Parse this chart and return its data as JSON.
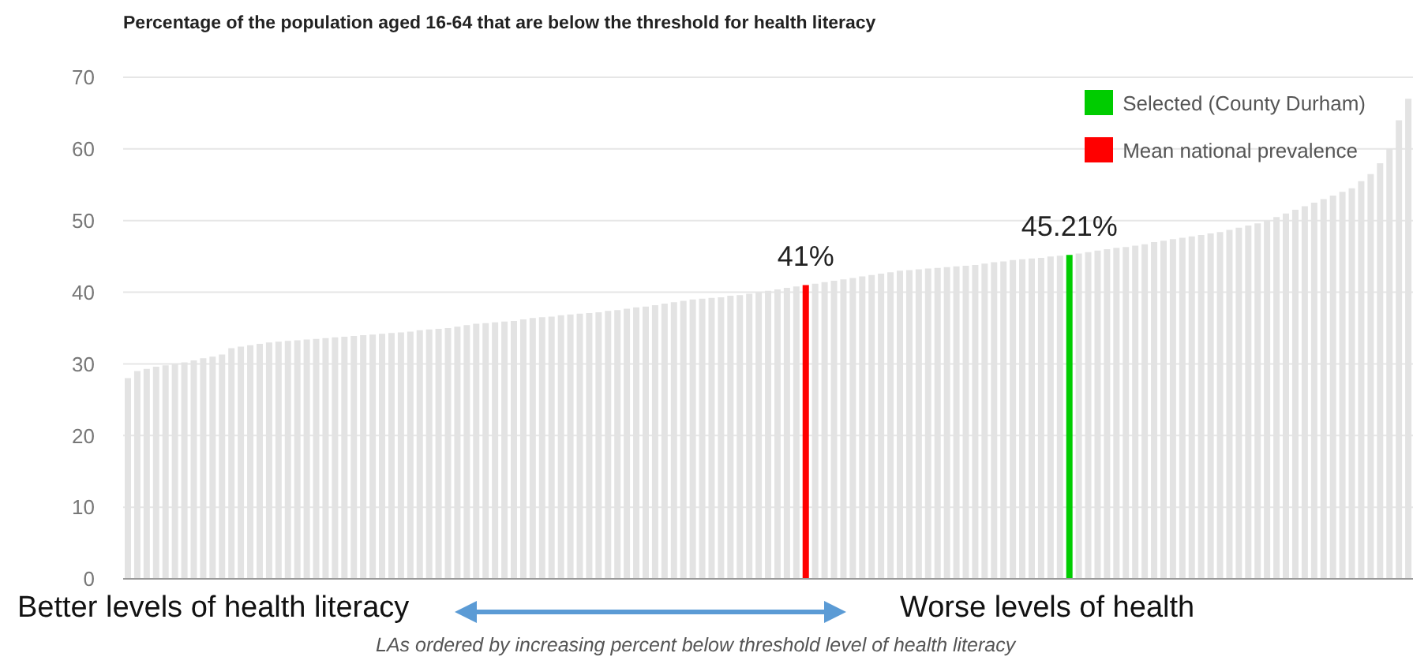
{
  "chart_data": {
    "type": "bar",
    "title": "Percentage of the population aged 16-64 that are below the threshold for health literacy",
    "categories": [
      null,
      null,
      null,
      null,
      null,
      null,
      null,
      null,
      null,
      null,
      null,
      null,
      null,
      null,
      null,
      null,
      null,
      null,
      null,
      null,
      null,
      null,
      null,
      null,
      null,
      null,
      null,
      null,
      null,
      null,
      null,
      null,
      null,
      null,
      null,
      null,
      null,
      null,
      null,
      null,
      null,
      null,
      null,
      null,
      null,
      null,
      null,
      null,
      null,
      null,
      null,
      null,
      null,
      null,
      null,
      null,
      null,
      null,
      null,
      null,
      null,
      null,
      null,
      null,
      null,
      null,
      null,
      null,
      null,
      null,
      null,
      null,
      null,
      null,
      null,
      null,
      null,
      null,
      null,
      null,
      null,
      null,
      null,
      null,
      null,
      null,
      null,
      null,
      null,
      null,
      null,
      null,
      null,
      null,
      null,
      null,
      null,
      null,
      null,
      null,
      null,
      null,
      null,
      null,
      null,
      null,
      null,
      null,
      null,
      null,
      null,
      null,
      null,
      null,
      null,
      null,
      null,
      null,
      null,
      null,
      null,
      null,
      null,
      null,
      null,
      null,
      null,
      null,
      null,
      null,
      null,
      null,
      null,
      null,
      null,
      null,
      null
    ],
    "stacked": true,
    "series": [
      {
        "color": "#e3e3e3",
        "values": [
          28.0,
          29.0,
          29.3,
          29.6,
          29.8,
          30.0,
          30.2,
          30.5,
          30.8,
          31.0,
          31.3,
          32.2,
          32.4,
          32.6,
          32.8,
          33.0,
          33.1,
          33.2,
          33.3,
          33.4,
          33.5,
          33.6,
          33.7,
          33.8,
          33.9,
          34.0,
          34.1,
          34.2,
          34.3,
          34.4,
          34.5,
          34.7,
          34.8,
          34.9,
          35.0,
          35.2,
          35.4,
          35.6,
          35.7,
          35.8,
          35.9,
          36.0,
          36.2,
          36.4,
          36.5,
          36.6,
          36.8,
          36.9,
          37.0,
          37.1,
          37.2,
          37.4,
          37.5,
          37.7,
          37.9,
          38.0,
          38.2,
          38.4,
          38.6,
          38.8,
          39.0,
          39.1,
          39.2,
          39.3,
          39.5,
          39.6,
          39.8,
          40.0,
          40.2,
          40.4,
          40.6,
          40.8,
          null,
          41.2,
          41.4,
          41.6,
          41.8,
          42.0,
          42.2,
          42.4,
          42.6,
          42.8,
          43.0,
          43.1,
          43.2,
          43.3,
          43.4,
          43.5,
          43.6,
          43.7,
          43.8,
          44.0,
          44.2,
          44.3,
          44.5,
          44.6,
          44.7,
          44.8,
          45.0,
          45.1,
          null,
          45.4,
          45.6,
          45.8,
          46.0,
          46.2,
          46.3,
          46.5,
          46.7,
          47.0,
          47.2,
          47.4,
          47.6,
          47.8,
          48.0,
          48.2,
          48.4,
          48.7,
          49.0,
          49.3,
          49.6,
          50.0,
          50.5,
          51.0,
          51.5,
          52.0,
          52.5,
          53.0,
          53.5,
          54.0,
          54.5,
          55.5,
          56.5,
          58.0,
          60.0,
          64.0,
          67.0
        ]
      },
      {
        "name": "Selected (County Durham)",
        "color": "#00cc00",
        "values": [
          null,
          null,
          null,
          null,
          null,
          null,
          null,
          null,
          null,
          null,
          null,
          null,
          null,
          null,
          null,
          null,
          null,
          null,
          null,
          null,
          null,
          null,
          null,
          null,
          null,
          null,
          null,
          null,
          null,
          null,
          null,
          null,
          null,
          null,
          null,
          null,
          null,
          null,
          null,
          null,
          null,
          null,
          null,
          null,
          null,
          null,
          null,
          null,
          null,
          null,
          null,
          null,
          null,
          null,
          null,
          null,
          null,
          null,
          null,
          null,
          null,
          null,
          null,
          null,
          null,
          null,
          null,
          null,
          null,
          null,
          null,
          null,
          null,
          null,
          null,
          null,
          null,
          null,
          null,
          null,
          null,
          null,
          null,
          null,
          null,
          null,
          null,
          null,
          null,
          null,
          null,
          null,
          null,
          null,
          null,
          null,
          null,
          null,
          null,
          null,
          45.21,
          null,
          null,
          null,
          null,
          null,
          null,
          null,
          null,
          null,
          null,
          null,
          null,
          null,
          null,
          null,
          null,
          null,
          null,
          null,
          null,
          null,
          null,
          null,
          null,
          null,
          null,
          null,
          null,
          null,
          null,
          null,
          null,
          null,
          null,
          null,
          null
        ],
        "value_labels": [
          null,
          null,
          null,
          null,
          null,
          null,
          null,
          null,
          null,
          null,
          null,
          null,
          null,
          null,
          null,
          null,
          null,
          null,
          null,
          null,
          null,
          null,
          null,
          null,
          null,
          null,
          null,
          null,
          null,
          null,
          null,
          null,
          null,
          null,
          null,
          null,
          null,
          null,
          null,
          null,
          null,
          null,
          null,
          null,
          null,
          null,
          null,
          null,
          null,
          null,
          null,
          null,
          null,
          null,
          null,
          null,
          null,
          null,
          null,
          null,
          null,
          null,
          null,
          null,
          null,
          null,
          null,
          null,
          null,
          null,
          null,
          null,
          null,
          null,
          null,
          null,
          null,
          null,
          null,
          null,
          null,
          null,
          null,
          null,
          null,
          null,
          null,
          null,
          null,
          null,
          null,
          null,
          null,
          null,
          null,
          null,
          null,
          null,
          null,
          null,
          "45.21%",
          null,
          null,
          null,
          null,
          null,
          null,
          null,
          null,
          null,
          null,
          null,
          null,
          null,
          null,
          null,
          null,
          null,
          null,
          null,
          null,
          null,
          null,
          null,
          null,
          null,
          null,
          null,
          null,
          null,
          null,
          null,
          null,
          null,
          null,
          null,
          null
        ]
      },
      {
        "name": "Mean national prevalence",
        "color": "#ff0000",
        "values": [
          null,
          null,
          null,
          null,
          null,
          null,
          null,
          null,
          null,
          null,
          null,
          null,
          null,
          null,
          null,
          null,
          null,
          null,
          null,
          null,
          null,
          null,
          null,
          null,
          null,
          null,
          null,
          null,
          null,
          null,
          null,
          null,
          null,
          null,
          null,
          null,
          null,
          null,
          null,
          null,
          null,
          null,
          null,
          null,
          null,
          null,
          null,
          null,
          null,
          null,
          null,
          null,
          null,
          null,
          null,
          null,
          null,
          null,
          null,
          null,
          null,
          null,
          null,
          null,
          null,
          null,
          null,
          null,
          null,
          null,
          null,
          null,
          41,
          null,
          null,
          null,
          null,
          null,
          null,
          null,
          null,
          null,
          null,
          null,
          null,
          null,
          null,
          null,
          null,
          null,
          null,
          null,
          null,
          null,
          null,
          null,
          null,
          null,
          null,
          null,
          null,
          null,
          null,
          null,
          null,
          null,
          null,
          null,
          null,
          null,
          null,
          null,
          null,
          null,
          null,
          null,
          null,
          null,
          null,
          null,
          null,
          null,
          null,
          null,
          null,
          null,
          null,
          null,
          null,
          null,
          null,
          null,
          null,
          null,
          null,
          null,
          null
        ],
        "value_labels": [
          null,
          null,
          null,
          null,
          null,
          null,
          null,
          null,
          null,
          null,
          null,
          null,
          null,
          null,
          null,
          null,
          null,
          null,
          null,
          null,
          null,
          null,
          null,
          null,
          null,
          null,
          null,
          null,
          null,
          null,
          null,
          null,
          null,
          null,
          null,
          null,
          null,
          null,
          null,
          null,
          null,
          null,
          null,
          null,
          null,
          null,
          null,
          null,
          null,
          null,
          null,
          null,
          null,
          null,
          null,
          null,
          null,
          null,
          null,
          null,
          null,
          null,
          null,
          null,
          null,
          null,
          null,
          null,
          null,
          null,
          null,
          null,
          "41%",
          null,
          null,
          null,
          null,
          null,
          null,
          null,
          null,
          null,
          null,
          null,
          null,
          null,
          null,
          null,
          null,
          null,
          null,
          null,
          null,
          null,
          null,
          null,
          null,
          null,
          null,
          null,
          null,
          null,
          null,
          null,
          null,
          null,
          null,
          null,
          null,
          null,
          null,
          null,
          null,
          null,
          null,
          null,
          null,
          null,
          null,
          null,
          null,
          null,
          null,
          null,
          null,
          null,
          null,
          null,
          null,
          null,
          null,
          null,
          null,
          null,
          null,
          null,
          null
        ]
      }
    ],
    "ylim": [
      0,
      70
    ],
    "yticks": [
      0,
      10,
      20,
      30,
      40,
      50,
      60,
      70
    ],
    "grid": "y",
    "legend": "top right",
    "annotations": [
      "Better levels of health literacy",
      "Worse levels of health",
      "LAs ordered by increasing percent below threshold level of health literacy"
    ]
  }
}
